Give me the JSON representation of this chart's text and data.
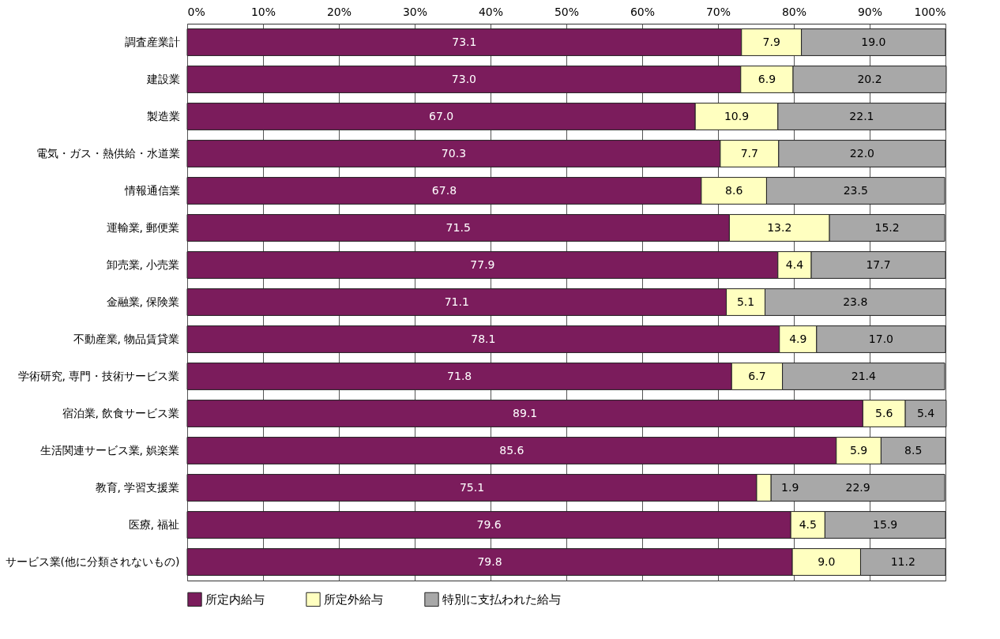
{
  "chart_data": {
    "type": "bar",
    "orientation": "horizontal",
    "stacked": true,
    "grid": "x",
    "legend": "bottom",
    "categories": [
      "調査産業計",
      "建設業",
      "製造業",
      "電気・ガス・熱供給・水道業",
      "情報通信業",
      "運輸業, 郵便業",
      "卸売業, 小売業",
      "金融業, 保険業",
      "不動産業, 物品賃貸業",
      "学術研究, 専門・技術サービス業",
      "宿泊業, 飲食サービス業",
      "生活関連サービス業, 娯楽業",
      "教育, 学習支援業",
      "医療, 福祉",
      "サービス業(他に分類されないもの)"
    ],
    "xlim": [
      0,
      100
    ],
    "xticks": [
      {
        "value": 0,
        "label": "0%"
      },
      {
        "value": 10,
        "label": "10%"
      },
      {
        "value": 20,
        "label": "20%"
      },
      {
        "value": 30,
        "label": "30%"
      },
      {
        "value": 40,
        "label": "40%"
      },
      {
        "value": 50,
        "label": "50%"
      },
      {
        "value": 60,
        "label": "60%"
      },
      {
        "value": 70,
        "label": "70%"
      },
      {
        "value": 80,
        "label": "80%"
      },
      {
        "value": 90,
        "label": "90%"
      },
      {
        "value": 100,
        "label": "100%"
      }
    ],
    "series": [
      {
        "name": "所定内給与",
        "color": "#7b1c5c",
        "values": [
          73.1,
          73.0,
          67.0,
          70.3,
          67.8,
          71.5,
          77.9,
          71.1,
          78.1,
          71.8,
          89.1,
          85.6,
          75.1,
          79.6,
          79.8
        ],
        "value_labels": [
          "73.1",
          "73.0",
          "67.0",
          "70.3",
          "67.8",
          "71.5",
          "77.9",
          "71.1",
          "78.1",
          "71.8",
          "89.1",
          "85.6",
          "75.1",
          "79.6",
          "79.8"
        ]
      },
      {
        "name": "所定外給与",
        "color": "#ffffc0",
        "values": [
          7.9,
          6.9,
          10.9,
          7.7,
          8.6,
          13.2,
          4.4,
          5.1,
          4.9,
          6.7,
          5.6,
          5.9,
          1.9,
          4.5,
          9.0
        ],
        "value_labels": [
          "7.9",
          "6.9",
          "10.9",
          "7.7",
          "8.6",
          "13.2",
          "4.4",
          "5.1",
          "4.9",
          "6.7",
          "5.6",
          "5.9",
          "1.9",
          "4.5",
          "9.0"
        ]
      },
      {
        "name": "特別に支払われた給与",
        "color": "#a8a8a8",
        "values": [
          19.0,
          20.2,
          22.1,
          22.0,
          23.5,
          15.2,
          17.7,
          23.8,
          17.0,
          21.4,
          5.4,
          8.5,
          22.9,
          15.9,
          11.2
        ],
        "value_labels": [
          "19.0",
          "20.2",
          "22.1",
          "22.0",
          "23.5",
          "15.2",
          "17.7",
          "23.8",
          "17.0",
          "21.4",
          "5.4",
          "8.5",
          "22.9",
          "15.9",
          "11.2"
        ]
      }
    ]
  }
}
